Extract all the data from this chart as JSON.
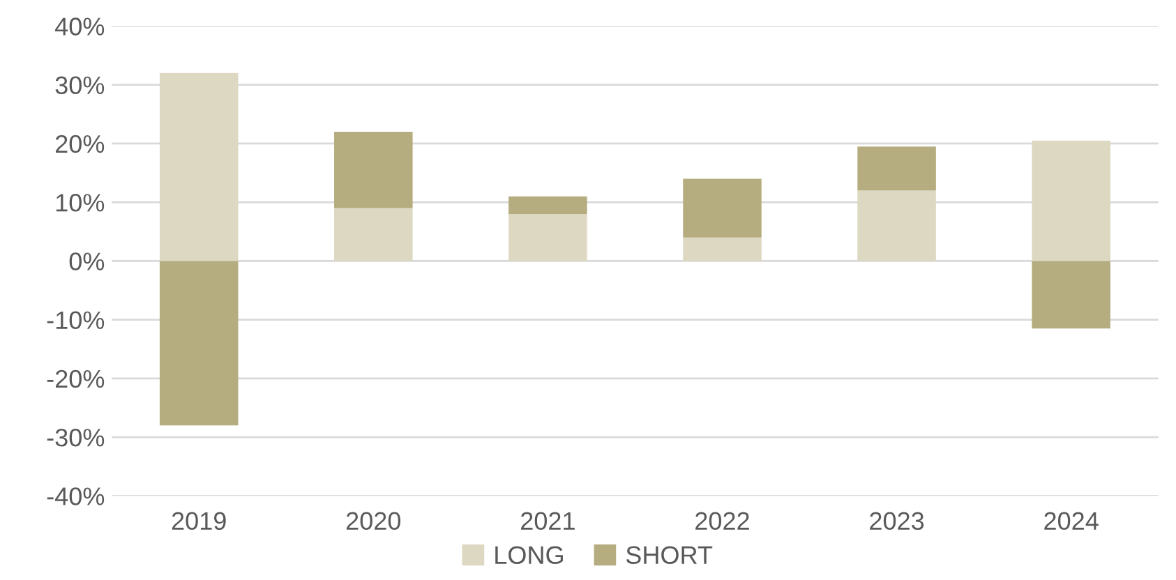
{
  "chart_data": {
    "type": "bar",
    "stacked": true,
    "categories": [
      "2019",
      "2020",
      "2021",
      "2022",
      "2023",
      "2024"
    ],
    "series": [
      {
        "name": "LONG",
        "color": "#ddd8c1",
        "values": [
          32,
          9,
          8,
          4,
          12,
          20.5
        ]
      },
      {
        "name": "SHORT",
        "color": "#b5ad80",
        "values": [
          -28,
          13,
          3,
          10,
          7.5,
          -11.5
        ]
      }
    ],
    "ylim": [
      -40,
      40
    ],
    "yticks": [
      {
        "value": -40,
        "label": "-40%"
      },
      {
        "value": -30,
        "label": "-30%"
      },
      {
        "value": -20,
        "label": "-20%"
      },
      {
        "value": -10,
        "label": "-10%"
      },
      {
        "value": 0,
        "label": "0%"
      },
      {
        "value": 10,
        "label": "10%"
      },
      {
        "value": 20,
        "label": "20%"
      },
      {
        "value": 30,
        "label": "30%"
      },
      {
        "value": 40,
        "label": "40%"
      }
    ],
    "grid": "y",
    "legend": "bottom"
  }
}
